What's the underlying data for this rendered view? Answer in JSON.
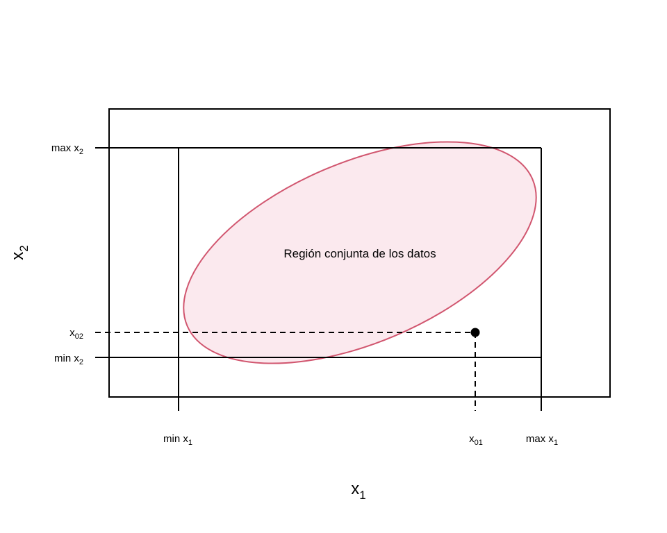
{
  "diagram": {
    "region_label": "Región conjunta de los datos",
    "x_axis": {
      "title_base": "x",
      "title_sub": "1"
    },
    "y_axis": {
      "title_base": "x",
      "title_sub": "2"
    },
    "x_ticks": {
      "min": {
        "base": "min x",
        "sub": "1"
      },
      "point": {
        "base": "x",
        "sub": "01"
      },
      "max": {
        "base": "max x",
        "sub": "1"
      }
    },
    "y_ticks": {
      "max": {
        "base": "max x",
        "sub": "2"
      },
      "point": {
        "base": "x",
        "sub": "02"
      },
      "min": {
        "base": "min x",
        "sub": "2"
      }
    },
    "colors": {
      "region_stroke": "#d1566f",
      "region_fill": "#fbe9ee",
      "lines": "#000000"
    }
  }
}
